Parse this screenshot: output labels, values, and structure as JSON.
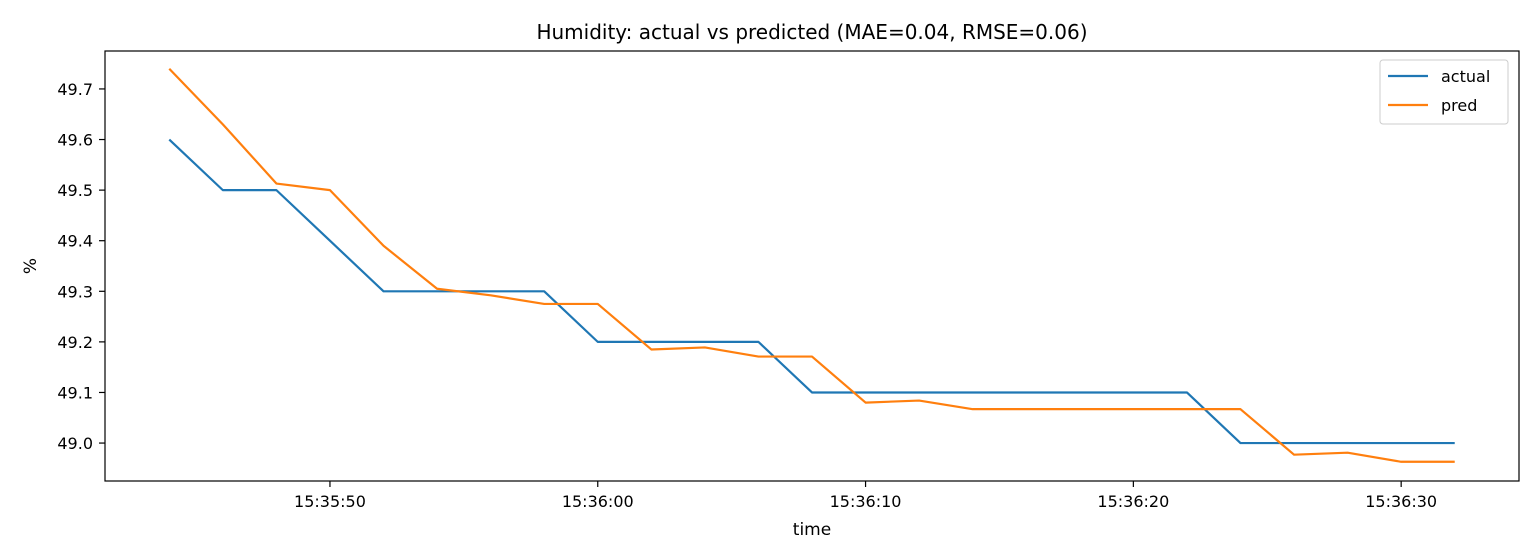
{
  "chart_data": {
    "type": "line",
    "title": "Humidity: actual vs predicted (MAE=0.04, RMSE=0.06)",
    "xlabel": "time",
    "ylabel": "%",
    "x": [
      "15:35:44",
      "15:35:46",
      "15:35:48",
      "15:35:50",
      "15:35:52",
      "15:35:54",
      "15:35:56",
      "15:35:58",
      "15:36:00",
      "15:36:02",
      "15:36:04",
      "15:36:06",
      "15:36:08",
      "15:36:10",
      "15:36:12",
      "15:36:14",
      "15:36:16",
      "15:36:18",
      "15:36:20",
      "15:36:22",
      "15:36:24",
      "15:36:26",
      "15:36:28",
      "15:36:30",
      "15:36:32"
    ],
    "xlim": [
      "15:35:41.6",
      "15:36:34.4"
    ],
    "x_ticks": [
      "15:35:50",
      "15:36:00",
      "15:36:10",
      "15:36:20",
      "15:36:30"
    ],
    "ylim": [
      48.925,
      49.775
    ],
    "y_ticks": [
      "49.0",
      "49.1",
      "49.2",
      "49.3",
      "49.4",
      "49.5",
      "49.6",
      "49.7"
    ],
    "grid": false,
    "legend_position": "top-right",
    "series": [
      {
        "name": "actual",
        "color": "#1f77b4",
        "values": [
          49.6,
          49.5,
          49.5,
          49.4,
          49.3,
          49.3,
          49.3,
          49.3,
          49.2,
          49.2,
          49.2,
          49.2,
          49.1,
          49.1,
          49.1,
          49.1,
          49.1,
          49.1,
          49.1,
          49.1,
          49.0,
          49.0,
          49.0,
          49.0,
          49.0
        ]
      },
      {
        "name": "pred",
        "color": "#ff7f0e",
        "values": [
          49.74,
          49.63,
          49.513,
          49.5,
          49.39,
          49.305,
          49.292,
          49.275,
          49.275,
          49.185,
          49.189,
          49.171,
          49.171,
          49.08,
          49.084,
          49.067,
          49.067,
          49.067,
          49.067,
          49.067,
          49.067,
          48.977,
          48.981,
          48.963,
          48.963
        ]
      }
    ]
  }
}
